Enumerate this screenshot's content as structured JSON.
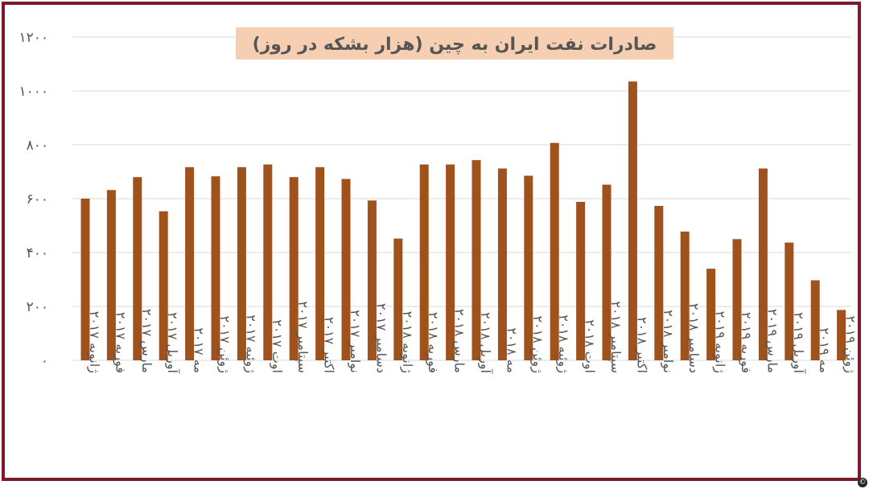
{
  "chart_data": {
    "type": "bar",
    "title": "صادرات نفت ایران به چین (هزار بشکه در روز)",
    "xlabel": "",
    "ylabel": "",
    "ylim": [
      0,
      1200
    ],
    "yticks": [
      {
        "value": 0,
        "label": "۰"
      },
      {
        "value": 200,
        "label": "۲۰۰"
      },
      {
        "value": 400,
        "label": "۴۰۰"
      },
      {
        "value": 600,
        "label": "۶۰۰"
      },
      {
        "value": 800,
        "label": "۸۰۰"
      },
      {
        "value": 1000,
        "label": "۱۰۰۰"
      },
      {
        "value": 1200,
        "label": "۱۲۰۰"
      }
    ],
    "grid": true,
    "bar_color": "#a0521d",
    "title_bg": "#f6cfb2",
    "categories": [
      "ژانویه ۲۰۱۷",
      "فوریه ۲۰۱۷",
      "مارس ۲۰۱۷",
      "آوریل ۲۰۱۷",
      "مه ۲۰۱۷",
      "ژوئن ۲۰۱۷",
      "ژوئیه ۲۰۱۷",
      "اوت ۲۰۱۷",
      "سپتامبر ۲۰۱۷",
      "اکتبر ۲۰۱۷",
      "نوامبر ۲۰۱۷",
      "دسامبر ۲۰۱۷",
      "ژانویه ۲۰۱۸",
      "فوریه ۲۰۱۸",
      "مارس ۲۰۱۸",
      "آوریل ۲۰۱۸",
      "مه ۲۰۱۸",
      "ژوئن ۲۰۱۸",
      "ژوئیه ۲۰۱۸",
      "اوت ۲۰۱۸",
      "سپتامبر ۲۰۱۸",
      "اکتبر ۲۰۱۸",
      "نوامبر ۲۰۱۸",
      "دسامبر ۲۰۱۸",
      "ژانویه ۲۰۱۹",
      "فوریه ۲۰۱۹",
      "مارس ۲۰۱۹",
      "آوریل ۲۰۱۹",
      "مه ۲۰۱۹",
      "ژوئن ۲۰۱۹"
    ],
    "values": [
      600,
      632,
      680,
      553,
      717,
      683,
      717,
      727,
      680,
      717,
      673,
      593,
      452,
      727,
      727,
      743,
      712,
      685,
      807,
      588,
      652,
      1035,
      573,
      478,
      340,
      450,
      712,
      437,
      297,
      187
    ]
  },
  "copyright_symbol": "©"
}
